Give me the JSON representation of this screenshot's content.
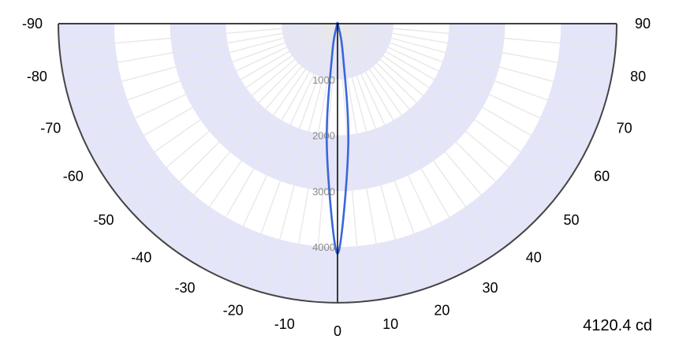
{
  "chart_data": {
    "type": "polar",
    "title": "",
    "peak_label": "4120.4 cd",
    "theta_labels_left": [
      "-90",
      "-80",
      "-70",
      "-60",
      "-50",
      "-40",
      "-30",
      "-20",
      "-10",
      "0"
    ],
    "theta_labels_right": [
      "90",
      "80",
      "70",
      "60",
      "50",
      "40",
      "30",
      "20",
      "10"
    ],
    "theta_range": [
      -90,
      90
    ],
    "r_ticks": [
      1000,
      2000,
      3000,
      4000
    ],
    "r_tick_labels": [
      "1000",
      "2000",
      "3000",
      "4000"
    ],
    "r_max": 5000,
    "band_color": "#e4e5f8",
    "grid_color": "#e8e8e8",
    "series": [
      {
        "color": "#3a66dd",
        "theta": [
          -90,
          -80,
          -70,
          -60,
          -50,
          -40,
          -30,
          -20,
          -10,
          -5,
          0,
          5,
          10,
          20,
          30,
          40,
          50,
          60,
          70,
          80,
          90
        ],
        "values": [
          0,
          0,
          0,
          0,
          0,
          0,
          2,
          40,
          550,
          2200,
          4120,
          2200,
          550,
          40,
          2,
          0,
          0,
          0,
          0,
          0,
          0
        ]
      }
    ]
  }
}
